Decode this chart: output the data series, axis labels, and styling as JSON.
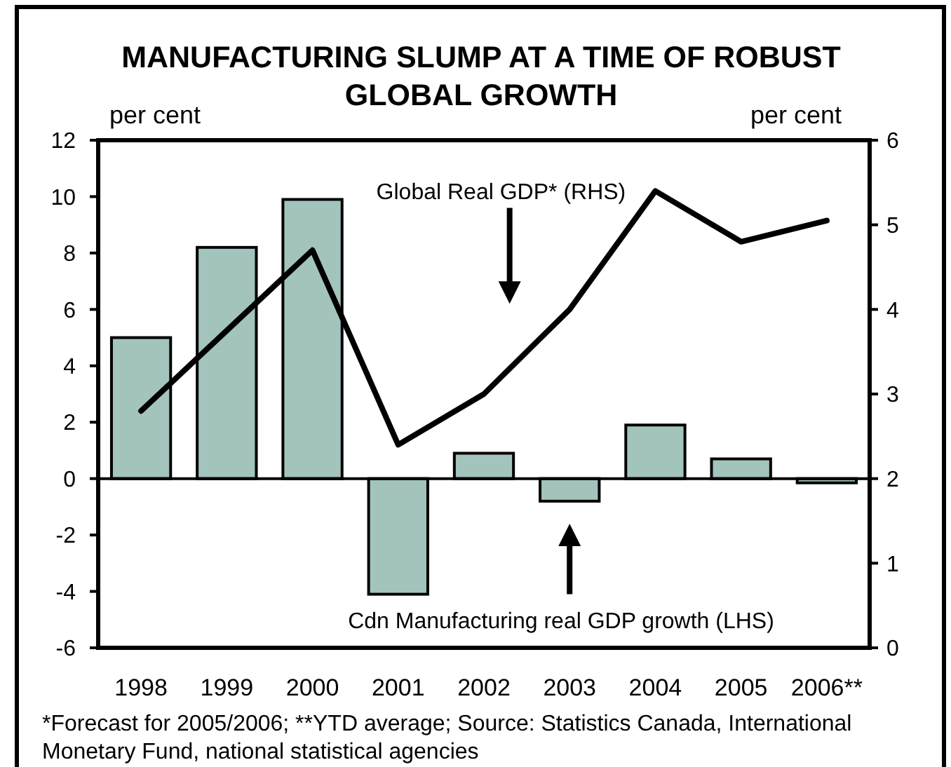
{
  "chart_data": {
    "type": "bar",
    "title": "MANUFACTURING SLUMP AT A TIME OF ROBUST GLOBAL GROWTH",
    "ylabel": "per cent",
    "y2label": "per cent",
    "categories": [
      "1998",
      "1999",
      "2000",
      "2001",
      "2002",
      "2003",
      "2004",
      "2005",
      "2006**"
    ],
    "series": [
      {
        "name": "Cdn Manufacturing real GDP growth (LHS)",
        "color": "#a3c4bd",
        "values": [
          5.0,
          8.2,
          9.9,
          -4.1,
          0.9,
          -0.8,
          1.9,
          0.7,
          -0.15
        ]
      },
      {
        "name": "Global Real GDP* (RHS)",
        "type": "line",
        "axis": "y2",
        "color": "#000000",
        "values": [
          2.8,
          3.75,
          4.7,
          2.4,
          3.0,
          4.0,
          5.4,
          4.8,
          5.05
        ]
      }
    ],
    "ylim": [
      -6,
      12
    ],
    "yticks": [
      -6,
      -4,
      -2,
      0,
      2,
      4,
      6,
      8,
      10,
      12
    ],
    "y2lim": [
      0,
      6
    ],
    "y2ticks": [
      0,
      1,
      2,
      3,
      4,
      5,
      6
    ],
    "annotations": [
      "*Forecast for 2005/2006; **YTD average; Source: Statistics Canada, International Monetary Fund, national statistical agencies"
    ]
  }
}
